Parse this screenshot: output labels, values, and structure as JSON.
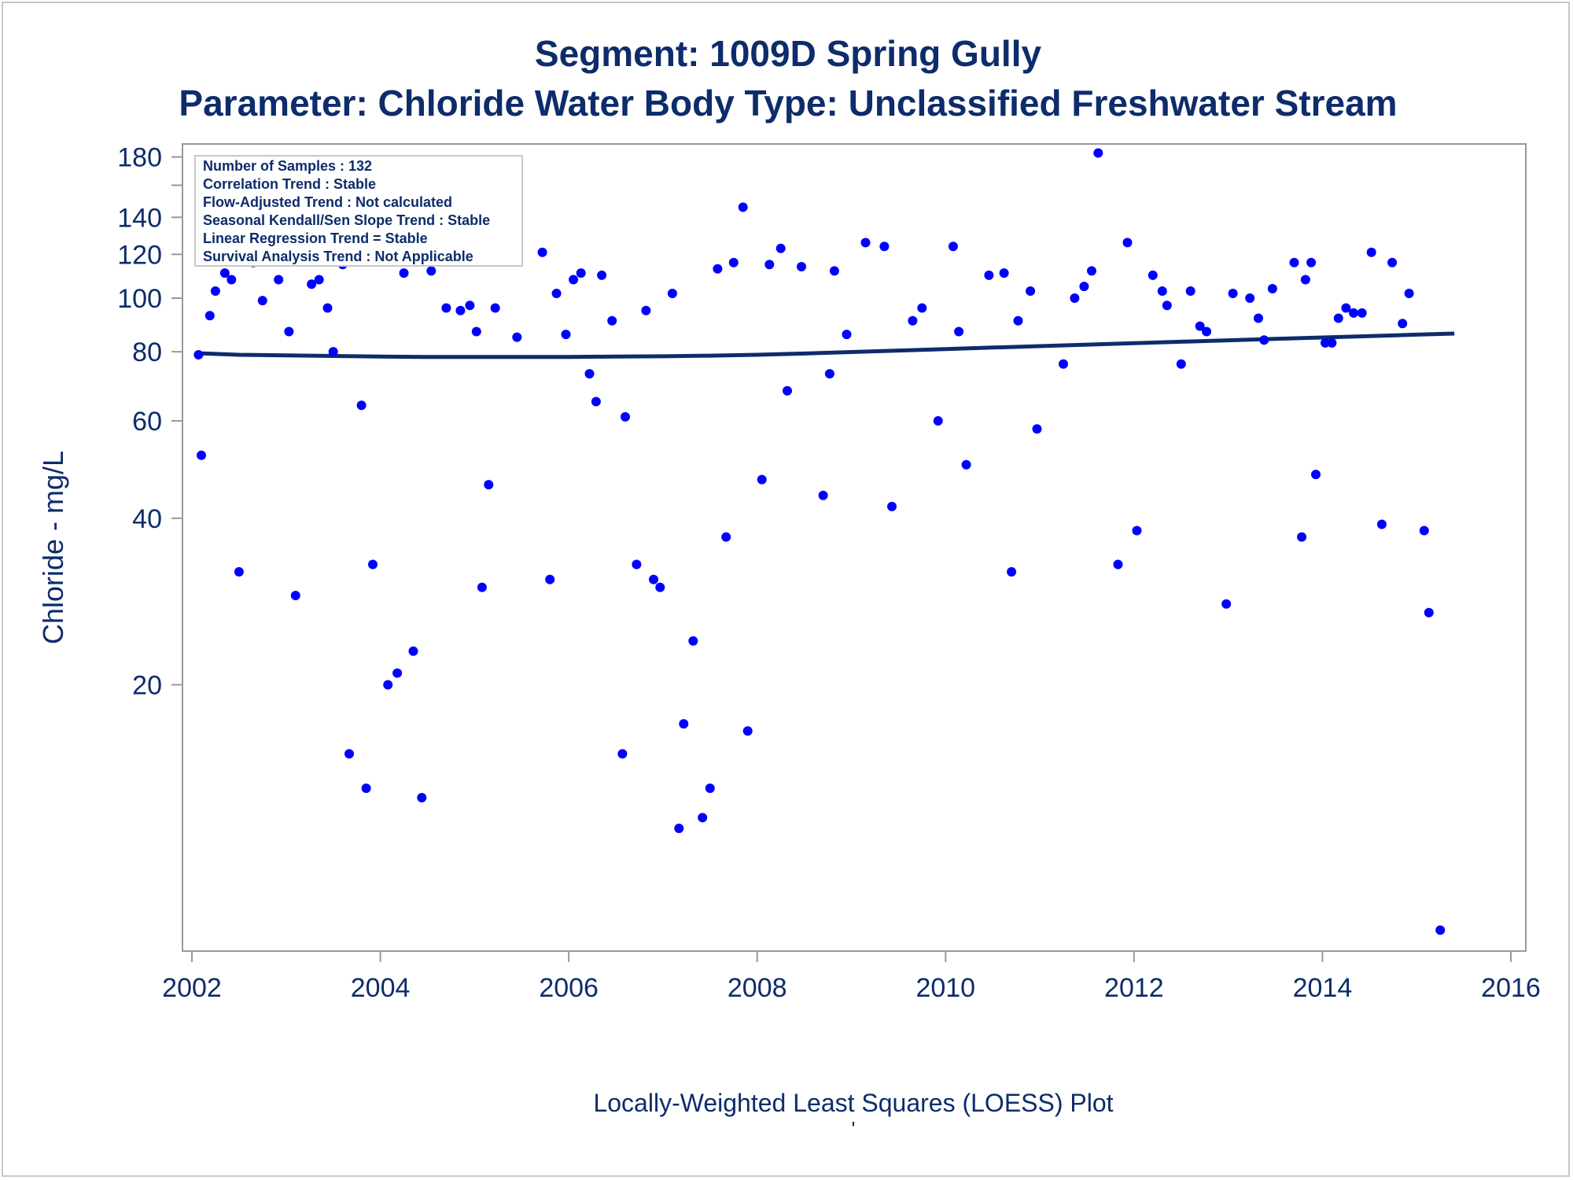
{
  "chart_data": {
    "type": "scatter",
    "title": "Segment: 1009D  Spring Gully",
    "subtitle": "Parameter: Chloride   Water Body Type: Unclassified Freshwater Stream",
    "ylabel": "Chloride - mg/L",
    "xlabel": "Locally-Weighted Least Squares (LOESS) Plot",
    "footnote": "'",
    "x_ticks": [
      "2002",
      "2004",
      "2006",
      "2008",
      "2010",
      "2012",
      "2014",
      "2016"
    ],
    "y_ticks": [
      "20",
      "40",
      "60",
      "80",
      "100",
      "120",
      "140",
      "180"
    ],
    "y_scale": "log",
    "xlim": [
      2002.0,
      2016.0
    ],
    "ylim": [
      6.6,
      190
    ],
    "grid": false,
    "stats_box": {
      "placement": "top-left",
      "lines": [
        "Number of Samples : 132",
        "Correlation Trend : Stable",
        "Flow-Adjusted Trend : Not calculated",
        "Seasonal Kendall/Sen Slope Trend : Stable",
        "Linear Regression Trend = Stable",
        "Survival Analysis Trend : Not Applicable"
      ]
    },
    "colors": {
      "points": "#0000ff",
      "loess": "#0d2c6b",
      "text": "#0d2c6b",
      "axis": "#999999"
    },
    "series": [
      {
        "kind": "points",
        "x": [
          2002.07,
          2002.1,
          2002.19,
          2002.25,
          2002.35,
          2002.42,
          2002.5,
          2002.58,
          2002.65,
          2002.75,
          2002.87,
          2002.92,
          2003.03,
          2003.1,
          2003.27,
          2003.35,
          2003.44,
          2003.5,
          2003.6,
          2003.67,
          2003.8,
          2003.85,
          2003.92,
          2004.02,
          2004.08,
          2004.18,
          2004.25,
          2004.35,
          2004.44,
          2004.54,
          2004.62,
          2004.7,
          2004.8,
          2004.85,
          2004.95,
          2005.02,
          2005.08,
          2005.15,
          2005.22,
          2005.35,
          2005.45,
          2005.72,
          2005.8,
          2005.87,
          2005.97,
          2006.05,
          2006.13,
          2006.22,
          2006.29,
          2006.35,
          2006.46,
          2006.57,
          2006.6,
          2006.72,
          2006.82,
          2006.9,
          2006.97,
          2007.1,
          2007.17,
          2007.22,
          2007.32,
          2007.42,
          2007.5,
          2007.58,
          2007.67,
          2007.75,
          2007.85,
          2007.9,
          2008.05,
          2008.13,
          2008.25,
          2008.32,
          2008.47,
          2008.7,
          2008.77,
          2008.82,
          2008.95,
          2009.15,
          2009.35,
          2009.43,
          2009.65,
          2009.75,
          2009.92,
          2010.08,
          2010.14,
          2010.22,
          2010.46,
          2010.62,
          2010.7,
          2010.77,
          2010.9,
          2010.97,
          2011.25,
          2011.37,
          2011.47,
          2011.55,
          2011.62,
          2011.83,
          2011.93,
          2012.03,
          2012.2,
          2012.3,
          2012.35,
          2012.5,
          2012.6,
          2012.7,
          2012.77,
          2012.98,
          2013.05,
          2013.23,
          2013.32,
          2013.38,
          2013.47,
          2013.7,
          2013.78,
          2013.82,
          2013.88,
          2013.93,
          2014.03,
          2014.1,
          2014.17,
          2014.25,
          2014.33,
          2014.42,
          2014.52,
          2014.63,
          2014.74,
          2014.85,
          2014.92,
          2015.08,
          2015.13,
          2015.25
        ],
        "y": [
          79,
          52,
          93,
          103,
          111,
          108,
          32,
          124,
          116,
          99,
          118,
          108,
          87,
          29,
          106,
          108,
          96,
          80,
          115,
          15,
          64,
          13,
          33,
          118,
          20,
          21,
          111,
          23,
          12.5,
          112,
          127,
          96,
          128,
          95,
          97,
          87,
          30,
          46,
          96,
          127,
          85,
          121,
          31,
          102,
          86,
          108,
          111,
          73,
          65,
          110,
          91,
          15,
          61,
          33,
          95,
          31,
          30,
          102,
          11,
          17,
          24,
          11.5,
          13,
          113,
          37,
          116,
          146,
          16.5,
          47,
          115,
          123,
          68,
          114,
          44,
          73,
          112,
          86,
          126,
          124,
          42,
          91,
          96,
          60,
          124,
          87,
          50,
          110,
          111,
          32,
          91,
          103,
          58,
          76,
          100,
          105,
          112,
          183,
          33,
          126,
          38,
          110,
          103,
          97,
          76,
          103,
          89,
          87,
          28,
          102,
          100,
          92,
          84,
          104,
          116,
          37,
          108,
          116,
          48,
          83,
          83,
          92,
          96,
          94,
          94,
          121,
          39,
          116,
          90,
          102,
          38,
          27,
          7.2
        ]
      },
      {
        "kind": "loess",
        "x": [
          2002.07,
          2002.5,
          2003.0,
          2003.5,
          2004.0,
          2004.5,
          2005.0,
          2005.5,
          2006.0,
          2006.5,
          2007.0,
          2007.5,
          2008.0,
          2008.5,
          2009.0,
          2009.5,
          2010.0,
          2010.5,
          2011.0,
          2011.5,
          2012.0,
          2012.5,
          2013.0,
          2013.5,
          2014.0,
          2014.5,
          2015.0,
          2015.4
        ],
        "y": [
          79.5,
          79.0,
          78.8,
          78.6,
          78.4,
          78.3,
          78.3,
          78.3,
          78.3,
          78.4,
          78.5,
          78.7,
          79.0,
          79.4,
          79.9,
          80.4,
          80.9,
          81.4,
          81.9,
          82.4,
          82.9,
          83.4,
          83.9,
          84.4,
          84.9,
          85.4,
          85.9,
          86.3
        ]
      }
    ]
  }
}
